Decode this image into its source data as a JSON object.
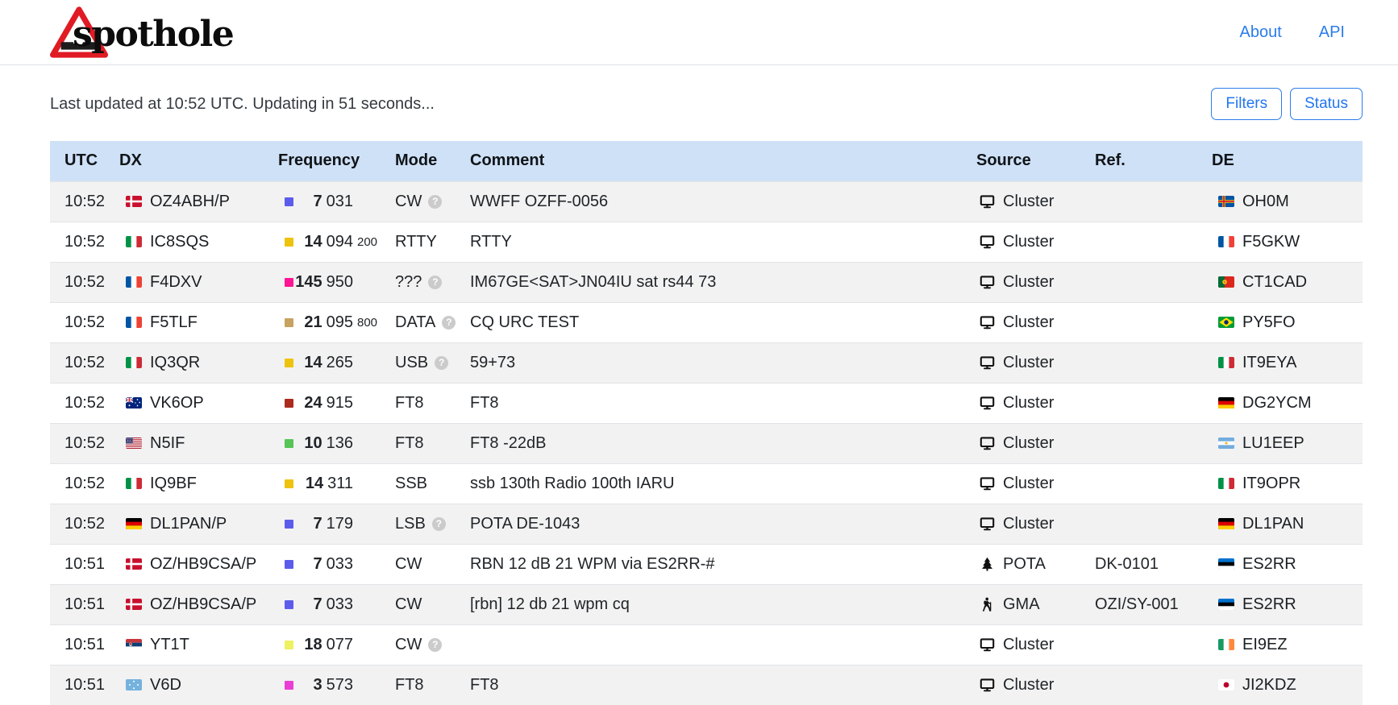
{
  "brand": {
    "name": "spothole"
  },
  "nav": {
    "about": "About",
    "api": "API"
  },
  "toolbar": {
    "status_line": "Last updated at 10:52 UTC. Updating in 51 seconds...",
    "filters_label": "Filters",
    "status_label": "Status"
  },
  "colors": {
    "accent_blue": "#2b7cea",
    "table_header_bg": "#cfe1f7",
    "row_stripe": "#f2f2f2"
  },
  "table": {
    "columns": [
      "UTC",
      "DX",
      "Frequency",
      "Mode",
      "Comment",
      "Source",
      "Ref.",
      "DE"
    ],
    "band_colors": {
      "3.5": "#e93fd5",
      "7": "#5c5cec",
      "10": "#55c556",
      "14": "#eec310",
      "18": "#edf162",
      "21": "#c7a260",
      "24": "#ac2a1e",
      "145": "#ff1493"
    },
    "rows": [
      {
        "utc": "10:52",
        "dx_flag": "dk",
        "dx": "OZ4ABH/P",
        "band": "7",
        "mhz": "7",
        "khz": "031",
        "sub": "",
        "mode": "CW",
        "mode_help": true,
        "comment": "WWFF OZFF-0056",
        "source_icon": "monitor",
        "source": "Cluster",
        "ref": "",
        "de_flag": "ax",
        "de": "OH0M"
      },
      {
        "utc": "10:52",
        "dx_flag": "it",
        "dx": "IC8SQS",
        "band": "14",
        "mhz": "14",
        "khz": "094",
        "sub": "200",
        "mode": "RTTY",
        "mode_help": false,
        "comment": "RTTY",
        "source_icon": "monitor",
        "source": "Cluster",
        "ref": "",
        "de_flag": "fr",
        "de": "F5GKW"
      },
      {
        "utc": "10:52",
        "dx_flag": "fr",
        "dx": "F4DXV",
        "band": "145",
        "mhz": "145",
        "khz": "950",
        "sub": "",
        "mode": "???",
        "mode_help": true,
        "comment": "IM67GE<SAT>JN04IU sat rs44 73",
        "source_icon": "monitor",
        "source": "Cluster",
        "ref": "",
        "de_flag": "pt",
        "de": "CT1CAD"
      },
      {
        "utc": "10:52",
        "dx_flag": "fr",
        "dx": "F5TLF",
        "band": "21",
        "mhz": "21",
        "khz": "095",
        "sub": "800",
        "mode": "DATA",
        "mode_help": true,
        "comment": "CQ URC TEST",
        "source_icon": "monitor",
        "source": "Cluster",
        "ref": "",
        "de_flag": "br",
        "de": "PY5FO"
      },
      {
        "utc": "10:52",
        "dx_flag": "it",
        "dx": "IQ3QR",
        "band": "14",
        "mhz": "14",
        "khz": "265",
        "sub": "",
        "mode": "USB",
        "mode_help": true,
        "comment": "59+73",
        "source_icon": "monitor",
        "source": "Cluster",
        "ref": "",
        "de_flag": "it",
        "de": "IT9EYA"
      },
      {
        "utc": "10:52",
        "dx_flag": "au",
        "dx": "VK6OP",
        "band": "24",
        "mhz": "24",
        "khz": "915",
        "sub": "",
        "mode": "FT8",
        "mode_help": false,
        "comment": "FT8",
        "source_icon": "monitor",
        "source": "Cluster",
        "ref": "",
        "de_flag": "de",
        "de": "DG2YCM"
      },
      {
        "utc": "10:52",
        "dx_flag": "us",
        "dx": "N5IF",
        "band": "10",
        "mhz": "10",
        "khz": "136",
        "sub": "",
        "mode": "FT8",
        "mode_help": false,
        "comment": "FT8 -22dB",
        "source_icon": "monitor",
        "source": "Cluster",
        "ref": "",
        "de_flag": "ar",
        "de": "LU1EEP"
      },
      {
        "utc": "10:52",
        "dx_flag": "it",
        "dx": "IQ9BF",
        "band": "14",
        "mhz": "14",
        "khz": "311",
        "sub": "",
        "mode": "SSB",
        "mode_help": false,
        "comment": "ssb 130th Radio 100th IARU",
        "source_icon": "monitor",
        "source": "Cluster",
        "ref": "",
        "de_flag": "it",
        "de": "IT9OPR"
      },
      {
        "utc": "10:52",
        "dx_flag": "de",
        "dx": "DL1PAN/P",
        "band": "7",
        "mhz": "7",
        "khz": "179",
        "sub": "",
        "mode": "LSB",
        "mode_help": true,
        "comment": "POTA DE-1043",
        "source_icon": "monitor",
        "source": "Cluster",
        "ref": "",
        "de_flag": "de",
        "de": "DL1PAN"
      },
      {
        "utc": "10:51",
        "dx_flag": "dk",
        "dx": "OZ/HB9CSA/P",
        "band": "7",
        "mhz": "7",
        "khz": "033",
        "sub": "",
        "mode": "CW",
        "mode_help": false,
        "comment": "RBN 12 dB 21 WPM via ES2RR-#",
        "source_icon": "tree",
        "source": "POTA",
        "ref": "DK-0101",
        "de_flag": "ee",
        "de": "ES2RR"
      },
      {
        "utc": "10:51",
        "dx_flag": "dk",
        "dx": "OZ/HB9CSA/P",
        "band": "7",
        "mhz": "7",
        "khz": "033",
        "sub": "",
        "mode": "CW",
        "mode_help": false,
        "comment": "[rbn] 12 db 21 wpm cq",
        "source_icon": "hiker",
        "source": "GMA",
        "ref": "OZI/SY-001",
        "de_flag": "ee",
        "de": "ES2RR"
      },
      {
        "utc": "10:51",
        "dx_flag": "rs",
        "dx": "YT1T",
        "band": "18",
        "mhz": "18",
        "khz": "077",
        "sub": "",
        "mode": "CW",
        "mode_help": true,
        "comment": "",
        "source_icon": "monitor",
        "source": "Cluster",
        "ref": "",
        "de_flag": "ie",
        "de": "EI9EZ"
      },
      {
        "utc": "10:51",
        "dx_flag": "fm",
        "dx": "V6D",
        "band": "3.5",
        "mhz": "3",
        "khz": "573",
        "sub": "",
        "mode": "FT8",
        "mode_help": false,
        "comment": "FT8",
        "source_icon": "monitor",
        "source": "Cluster",
        "ref": "",
        "de_flag": "jp",
        "de": "JI2KDZ"
      }
    ]
  }
}
